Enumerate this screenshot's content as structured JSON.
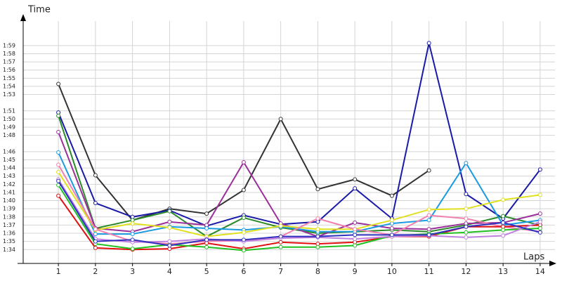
{
  "chart_data": {
    "type": "line",
    "y_label": "Time",
    "x_label": "Laps",
    "x": [
      1,
      2,
      3,
      4,
      5,
      6,
      7,
      8,
      9,
      10,
      11,
      12,
      13,
      14
    ],
    "xlim": [
      0.05,
      14.4
    ],
    "ylim": [
      92.3,
      122
    ],
    "xticks": [
      1,
      2,
      3,
      4,
      5,
      6,
      7,
      8,
      9,
      10,
      11,
      12,
      13,
      14
    ],
    "yticks": [
      {
        "value": 94,
        "label": "1:34"
      },
      {
        "value": 95,
        "label": "1:35"
      },
      {
        "value": 96,
        "label": "1:36"
      },
      {
        "value": 97,
        "label": "1:37"
      },
      {
        "value": 98,
        "label": "1:38"
      },
      {
        "value": 99,
        "label": "1:39"
      },
      {
        "value": 100,
        "label": "1:40"
      },
      {
        "value": 101,
        "label": "1:41"
      },
      {
        "value": 102,
        "label": "1:42"
      },
      {
        "value": 103,
        "label": "1:43"
      },
      {
        "value": 104,
        "label": "1:44"
      },
      {
        "value": 105,
        "label": "1:45"
      },
      {
        "value": 106,
        "label": "1:46"
      },
      {
        "value": 108,
        "label": "1:48"
      },
      {
        "value": 109,
        "label": "1:49"
      },
      {
        "value": 110,
        "label": "1:50"
      },
      {
        "value": 111,
        "label": "1:51"
      },
      {
        "value": 113,
        "label": "1:53"
      },
      {
        "value": 114,
        "label": "1:54"
      },
      {
        "value": 115,
        "label": "1:55"
      },
      {
        "value": 116,
        "label": "1:56"
      },
      {
        "value": 117,
        "label": "1:57"
      },
      {
        "value": 118,
        "label": "1:58"
      },
      {
        "value": 119,
        "label": "1:59"
      }
    ],
    "grid": true,
    "series": [
      {
        "color": "#333333",
        "values": [
          114.3,
          103.1,
          97.6,
          99.0,
          98.4,
          101.3,
          110.0,
          101.4,
          102.6,
          100.6,
          103.7,
          null,
          null,
          null
        ]
      },
      {
        "color": "#1a1aa8",
        "values": [
          110.8,
          99.7,
          98.0,
          98.8,
          96.9,
          98.2,
          97.1,
          97.4,
          101.5,
          97.8,
          119.3,
          100.8,
          97.8,
          103.8
        ]
      },
      {
        "color": "#2a8a2a",
        "values": [
          110.4,
          96.6,
          97.6,
          98.7,
          95.6,
          97.9,
          96.7,
          96.0,
          96.2,
          96.4,
          96.2,
          97.0,
          98.1,
          97.0
        ]
      },
      {
        "color": "#9b309b",
        "values": [
          108.4,
          96.6,
          96.2,
          97.4,
          97.0,
          104.7,
          97.2,
          95.6,
          97.3,
          96.6,
          96.5,
          97.2,
          97.3,
          98.4
        ]
      },
      {
        "color": "#1a9ae0",
        "values": [
          105.9,
          95.9,
          95.9,
          96.8,
          96.6,
          96.4,
          96.8,
          96.2,
          96.2,
          97.2,
          97.6,
          104.6,
          97.0,
          97.6
        ]
      },
      {
        "color": "#e0e020",
        "values": [
          103.5,
          96.4,
          97.2,
          96.7,
          95.6,
          96.1,
          96.9,
          96.5,
          96.5,
          97.6,
          98.9,
          99.0,
          100.1,
          100.7
        ]
      },
      {
        "color": "#f080b0",
        "values": [
          104.4,
          96.5,
          95.0,
          94.7,
          95.0,
          95.1,
          95.6,
          97.8,
          96.5,
          95.8,
          98.2,
          97.8,
          96.8,
          96.2
        ]
      },
      {
        "color": "#e01010",
        "values": [
          100.6,
          94.2,
          94.0,
          94.1,
          94.8,
          94.1,
          94.9,
          94.7,
          94.9,
          95.6,
          95.6,
          96.8,
          96.8,
          97.0
        ]
      },
      {
        "color": "#20c020",
        "values": [
          101.9,
          94.7,
          94.1,
          94.6,
          94.3,
          93.9,
          94.3,
          94.3,
          94.5,
          95.7,
          95.9,
          96.1,
          96.4,
          96.6
        ]
      },
      {
        "color": "#c080e0",
        "values": [
          102.6,
          95.3,
          94.9,
          95.0,
          95.3,
          95.0,
          95.4,
          95.5,
          95.3,
          95.6,
          95.7,
          95.5,
          95.7,
          97.4
        ]
      },
      {
        "color": "#3030c0",
        "values": [
          102.4,
          95.0,
          95.2,
          94.5,
          95.2,
          95.2,
          95.6,
          95.6,
          95.8,
          95.8,
          95.8,
          96.8,
          97.3,
          96.1
        ]
      }
    ]
  }
}
